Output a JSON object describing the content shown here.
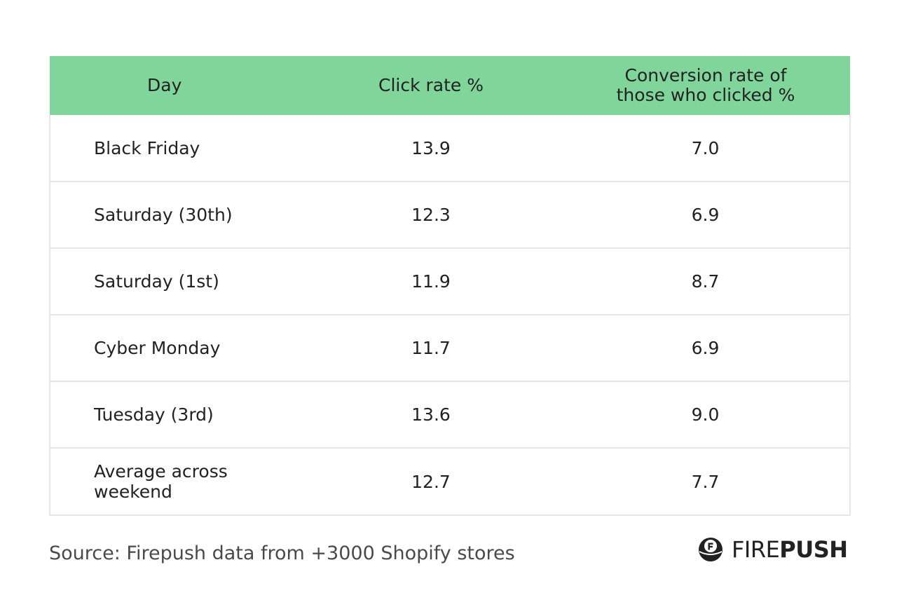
{
  "chart_data": {
    "type": "table",
    "columns": [
      "Day",
      "Click rate %",
      "Conversion rate of those who clicked %"
    ],
    "header_lines": {
      "day": "Day",
      "click": "Click rate %",
      "conversion_line1": "Conversion rate of",
      "conversion_line2": "those who clicked %"
    },
    "rows": [
      {
        "day": "Black Friday",
        "click": "13.9",
        "conversion": "7.0"
      },
      {
        "day": "Saturday (30th)",
        "click": "12.3",
        "conversion": "6.9"
      },
      {
        "day": "Saturday (1st)",
        "click": "11.9",
        "conversion": "8.7"
      },
      {
        "day": "Cyber Monday",
        "click": "11.7",
        "conversion": "6.9"
      },
      {
        "day": "Tuesday (3rd)",
        "click": "13.6",
        "conversion": "9.0"
      },
      {
        "day": "Average across weekend",
        "click": "12.7",
        "conversion": "7.7"
      }
    ]
  },
  "footer": {
    "source": "Source: Firepush data from +3000 Shopify stores",
    "brand_fire": "FIRE",
    "brand_push": "PUSH",
    "logo_icon": "firepush-logo-icon"
  },
  "colors": {
    "header_bg": "#80d59a",
    "border": "#e6e6e6",
    "text": "#222222"
  }
}
